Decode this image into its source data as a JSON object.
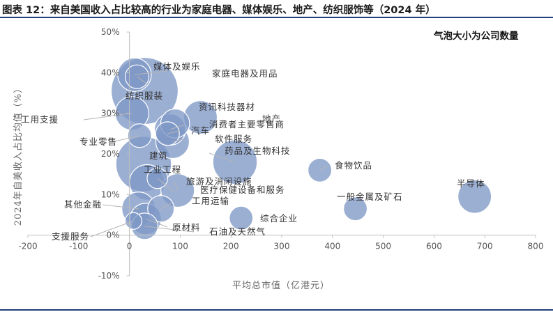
{
  "title": "图表 12：来自美国收入占比较高的行业为家庭电器、媒体娱乐、地产、纺织服饰等（2024 年）",
  "colors": {
    "bubble": "#7f98c6",
    "bubble_edge": "#ffffff",
    "leader": "#b5b5b5",
    "rule": "#1f3e7a"
  },
  "chart_data": {
    "type": "scatter",
    "subtype": "bubble",
    "note": "气泡大小为公司数量",
    "xlabel": "平均总市值（亿港元）",
    "ylabel": "2024年自美收入占比均值（%）",
    "xlim": [
      -200,
      800
    ],
    "ylim": [
      -10,
      50
    ],
    "x_ticks": [
      "-200",
      "-100",
      "0",
      "100",
      "200",
      "300",
      "400",
      "500",
      "600",
      "700",
      "800"
    ],
    "y_ticks": [
      "-10%",
      "0%",
      "10%",
      "20%",
      "30%",
      "40%",
      "50%"
    ],
    "grid": false,
    "points": [
      {
        "name": "纺织服装",
        "x": 30,
        "y": 35.5,
        "size": 16
      },
      {
        "name": "建筑",
        "x": 28,
        "y": 17.5,
        "size": 11
      },
      {
        "name": "工业工程",
        "x": 35,
        "y": 13,
        "size": 4.5
      },
      {
        "name": "媒体及娱乐",
        "x": 10,
        "y": 39.5,
        "size": 4
      },
      {
        "name": "家庭电器及用品",
        "x": 15,
        "y": 39,
        "size": 2
      },
      {
        "name": "工用支援",
        "x": 5,
        "y": 30,
        "size": 4
      },
      {
        "name": "资讯科技器材",
        "x": 140,
        "y": 29,
        "size": 4
      },
      {
        "name": "地产",
        "x": 90,
        "y": 27.5,
        "size": 3
      },
      {
        "name": "消费者主要零售商",
        "x": 80,
        "y": 26,
        "size": 3.5
      },
      {
        "name": "汽车",
        "x": 75,
        "y": 25,
        "size": 2
      },
      {
        "name": "软件服务",
        "x": 85,
        "y": 23,
        "size": 4
      },
      {
        "name": "专业零售",
        "x": 20,
        "y": 24.5,
        "size": 2
      },
      {
        "name": "药品及生物科技",
        "x": 208,
        "y": 18,
        "size": 7
      },
      {
        "name": "食物饮品",
        "x": 375,
        "y": 16,
        "size": 2
      },
      {
        "name": "旅游及消闲设施",
        "x": 95,
        "y": 11,
        "size": 4
      },
      {
        "name": "医疗保健设备和服务",
        "x": 55,
        "y": 14,
        "size": 1.5
      },
      {
        "name": "工用运输",
        "x": 62,
        "y": 6.5,
        "size": 2.5
      },
      {
        "name": "其他金融",
        "x": 18,
        "y": 6.5,
        "size": 4
      },
      {
        "name": "一般金属及矿石",
        "x": 445,
        "y": 6.5,
        "size": 2
      },
      {
        "name": "半导体",
        "x": 680,
        "y": 9.5,
        "size": 4
      },
      {
        "name": "综合企业",
        "x": 220,
        "y": 4.2,
        "size": 2
      },
      {
        "name": "原材料",
        "x": 32,
        "y": 4,
        "size": 3.5
      },
      {
        "name": "支援服务",
        "x": 8,
        "y": 3.5,
        "size": 1
      },
      {
        "name": "石油及天然气",
        "x": 30,
        "y": 2.2,
        "size": 2.5
      }
    ]
  }
}
